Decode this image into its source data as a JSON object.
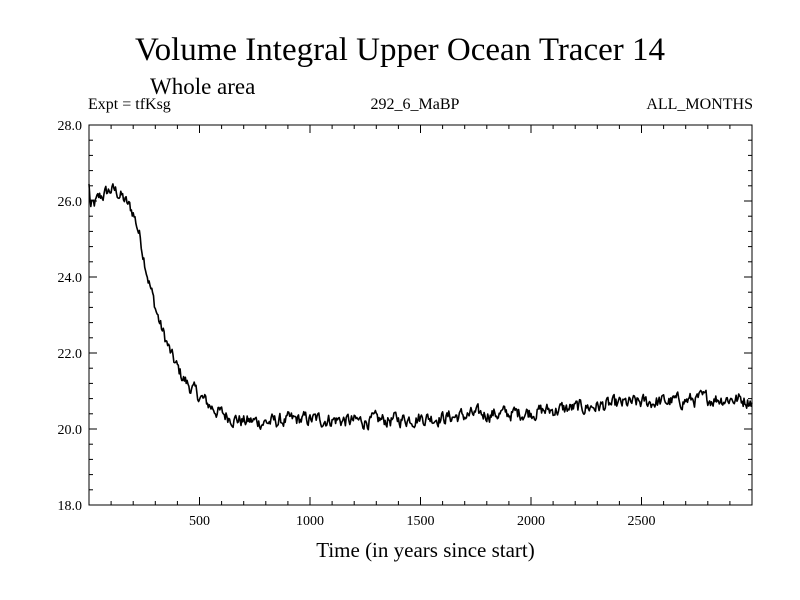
{
  "chart_data": {
    "type": "line",
    "title": "Volume Integral Upper Ocean Tracer 14",
    "subtitle": "Whole area",
    "experiment": "Expt = tfKsg",
    "run_label": "292_6_MaBP",
    "period_label": "ALL_MONTHS",
    "xlabel": "Time (in years since start)",
    "ylabel": "",
    "xlim": [
      0,
      3000
    ],
    "ylim": [
      18.0,
      28.0
    ],
    "x_ticks": [
      500,
      1000,
      1500,
      2000,
      2500
    ],
    "x_tick_labels": [
      "500",
      "1000",
      "1500",
      "2000",
      "2500"
    ],
    "y_ticks": [
      18.0,
      20.0,
      22.0,
      24.0,
      26.0,
      28.0
    ],
    "y_tick_labels": [
      "18.0",
      "20.0",
      "22.0",
      "24.0",
      "26.0",
      "28.0"
    ],
    "series": [
      {
        "name": "Tracer 14",
        "x": [
          0,
          25,
          50,
          75,
          100,
          125,
          150,
          175,
          200,
          225,
          250,
          275,
          300,
          325,
          350,
          375,
          400,
          425,
          450,
          475,
          500,
          550,
          600,
          650,
          700,
          750,
          800,
          850,
          900,
          950,
          1000,
          1100,
          1200,
          1300,
          1400,
          1500,
          1600,
          1700,
          1800,
          1900,
          2000,
          2100,
          2200,
          2300,
          2400,
          2500,
          2600,
          2700,
          2800,
          2900,
          3000
        ],
        "values": [
          25.8,
          25.9,
          26.1,
          26.2,
          26.3,
          26.25,
          26.1,
          25.9,
          25.7,
          25.2,
          24.5,
          23.8,
          23.2,
          22.7,
          22.3,
          21.9,
          21.6,
          21.35,
          21.15,
          21.0,
          20.85,
          20.6,
          20.4,
          20.3,
          20.2,
          20.2,
          20.18,
          20.2,
          20.22,
          20.25,
          20.25,
          20.25,
          20.2,
          20.22,
          20.25,
          20.3,
          20.3,
          20.35,
          20.4,
          20.4,
          20.45,
          20.5,
          20.55,
          20.6,
          20.65,
          20.7,
          20.72,
          20.75,
          20.8,
          20.8,
          20.75
        ]
      }
    ]
  }
}
